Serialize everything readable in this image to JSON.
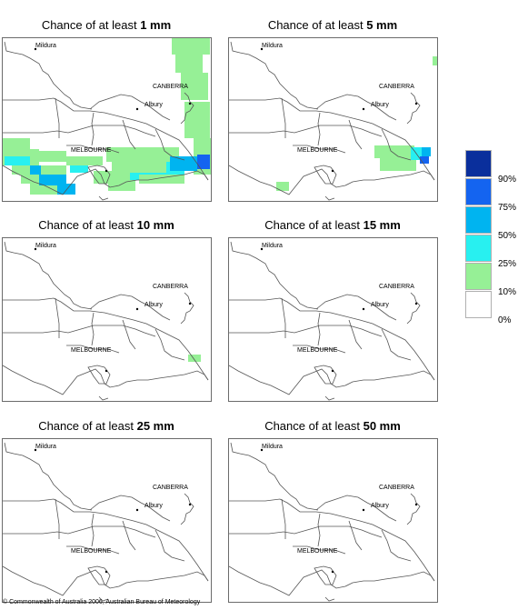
{
  "panels": [
    {
      "title_prefix": "Chance of at least ",
      "amount": "1 mm",
      "highlight": "p1"
    },
    {
      "title_prefix": "Chance of at least ",
      "amount": "5 mm",
      "highlight": "p5"
    },
    {
      "title_prefix": "Chance of at least ",
      "amount": "10 mm",
      "highlight": "p10"
    },
    {
      "title_prefix": "Chance of at least ",
      "amount": "15 mm",
      "highlight": "none"
    },
    {
      "title_prefix": "Chance of at least ",
      "amount": "25 mm",
      "highlight": "none"
    },
    {
      "title_prefix": "Chance of at least ",
      "amount": "50 mm",
      "highlight": "none"
    }
  ],
  "places": {
    "mildura": "Mildura",
    "canberra": "CANBERRA",
    "albury": "Albury",
    "melbourne": "MELBOURNE"
  },
  "legend": {
    "labels": [
      "90%",
      "75%",
      "50%",
      "25%",
      "10%",
      "0%"
    ],
    "colors": [
      "#0a2f9c",
      "#1464f0",
      "#00b4f0",
      "#28f0f0",
      "#96f096",
      "#ffffff"
    ]
  },
  "copyright": "© Commonwealth of Australia 2006, Australian Bureau of Meteorology"
}
